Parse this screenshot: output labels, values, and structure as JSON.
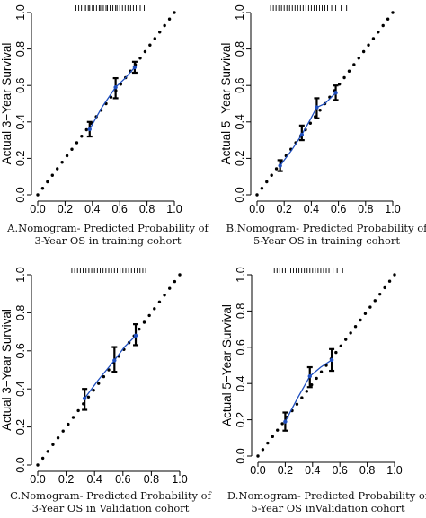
{
  "chart_data": [
    {
      "type": "scatter",
      "caption": [
        "A.Nomogram- Predicted Probability of",
        "3-Year OS in training cohort"
      ],
      "ylabel": "Actual 3−Year Survival",
      "xlim": [
        0,
        1
      ],
      "ylim": [
        0,
        1
      ],
      "xticks": [
        "0.0",
        "0.2",
        "0.4",
        "0.6",
        "0.8",
        "1.0"
      ],
      "yticks": [
        "0.0",
        "0.2",
        "0.4",
        "0.6",
        "0.8",
        "1.0"
      ],
      "ideal_line": {
        "x": [
          0,
          1
        ],
        "y": [
          0,
          1
        ]
      },
      "calibration": {
        "x": [
          0.38,
          0.57,
          0.71
        ],
        "y": [
          0.36,
          0.59,
          0.7
        ],
        "lower": [
          0.32,
          0.53,
          0.67
        ],
        "upper": [
          0.4,
          0.64,
          0.73
        ]
      },
      "fit_line": {
        "x": [
          0.38,
          0.47,
          0.57,
          0.64,
          0.71
        ],
        "y": [
          0.36,
          0.48,
          0.59,
          0.64,
          0.7
        ]
      },
      "rug": [
        0.28,
        0.3,
        0.32,
        0.34,
        0.35,
        0.37,
        0.38,
        0.4,
        0.41,
        0.43,
        0.45,
        0.46,
        0.48,
        0.5,
        0.51,
        0.53,
        0.55,
        0.57,
        0.58,
        0.6,
        0.62,
        0.64,
        0.66,
        0.68,
        0.7,
        0.72,
        0.75,
        0.78
      ]
    },
    {
      "type": "scatter",
      "caption": [
        "B.Nomogram- Predicted Probability of",
        "5-Year OS in training cohort"
      ],
      "ylabel": "Actual 5−Year Survival",
      "xlim": [
        0,
        1
      ],
      "ylim": [
        0,
        1
      ],
      "xticks": [
        "0.0",
        "0.2",
        "0.4",
        "0.6",
        "0.8",
        "1.0"
      ],
      "yticks": [
        "0.0",
        "0.2",
        "0.4",
        "0.6",
        "0.8",
        "1.0"
      ],
      "ideal_line": {
        "x": [
          0,
          1
        ],
        "y": [
          0,
          1
        ]
      },
      "calibration": {
        "x": [
          0.17,
          0.33,
          0.44,
          0.58
        ],
        "y": [
          0.16,
          0.33,
          0.48,
          0.56
        ],
        "lower": [
          0.13,
          0.3,
          0.42,
          0.52
        ],
        "upper": [
          0.19,
          0.38,
          0.53,
          0.6
        ]
      },
      "fit_line": {
        "x": [
          0.17,
          0.25,
          0.33,
          0.39,
          0.44,
          0.5,
          0.58
        ],
        "y": [
          0.16,
          0.24,
          0.33,
          0.41,
          0.48,
          0.5,
          0.56
        ]
      },
      "rug": [
        0.1,
        0.12,
        0.14,
        0.16,
        0.18,
        0.2,
        0.22,
        0.24,
        0.26,
        0.28,
        0.3,
        0.32,
        0.34,
        0.36,
        0.38,
        0.4,
        0.42,
        0.44,
        0.46,
        0.48,
        0.5,
        0.52,
        0.55,
        0.58,
        0.62,
        0.66
      ]
    },
    {
      "type": "scatter",
      "caption": [
        "C.Nomogram- Predicted Probability of",
        "3-Year OS in Validation cohort"
      ],
      "ylabel": "Actual 3−Year Survival",
      "xlim": [
        0,
        1
      ],
      "ylim": [
        0,
        1
      ],
      "xticks": [
        "0.0",
        "0.2",
        "0.4",
        "0.6",
        "0.8",
        "1.0"
      ],
      "yticks": [
        "0.0",
        "0.2",
        "0.4",
        "0.6",
        "0.8",
        "1.0"
      ],
      "ideal_line": {
        "x": [
          0,
          1
        ],
        "y": [
          0,
          1
        ]
      },
      "calibration": {
        "x": [
          0.33,
          0.54,
          0.69
        ],
        "y": [
          0.35,
          0.55,
          0.68
        ],
        "lower": [
          0.29,
          0.49,
          0.63
        ],
        "upper": [
          0.4,
          0.62,
          0.74
        ]
      },
      "fit_line": {
        "x": [
          0.33,
          0.43,
          0.54,
          0.61,
          0.69
        ],
        "y": [
          0.35,
          0.45,
          0.55,
          0.62,
          0.68
        ]
      },
      "rug": [
        0.24,
        0.26,
        0.28,
        0.3,
        0.32,
        0.34,
        0.36,
        0.38,
        0.4,
        0.42,
        0.44,
        0.46,
        0.48,
        0.5,
        0.52,
        0.54,
        0.56,
        0.58,
        0.6,
        0.62,
        0.64,
        0.66,
        0.68,
        0.7,
        0.72,
        0.74,
        0.76
      ]
    },
    {
      "type": "scatter",
      "caption": [
        "D.Nomogram- Predicted Probability of",
        "5-Year OS inValidation cohort"
      ],
      "ylabel": "Actual 5−Year Survival",
      "xlim": [
        0,
        1
      ],
      "ylim": [
        0,
        1
      ],
      "xticks": [
        "0.0",
        "0.2",
        "0.4",
        "0.6",
        "0.8",
        "1.0"
      ],
      "yticks": [
        "0.0",
        "0.2",
        "0.4",
        "0.6",
        "0.8",
        "1.0"
      ],
      "ideal_line": {
        "x": [
          0,
          1
        ],
        "y": [
          0,
          1
        ]
      },
      "calibration": {
        "x": [
          0.2,
          0.38,
          0.54
        ],
        "y": [
          0.19,
          0.44,
          0.53
        ],
        "lower": [
          0.14,
          0.38,
          0.47
        ],
        "upper": [
          0.24,
          0.49,
          0.59
        ]
      },
      "fit_line": {
        "x": [
          0.2,
          0.29,
          0.38,
          0.46,
          0.54
        ],
        "y": [
          0.19,
          0.32,
          0.44,
          0.49,
          0.53
        ]
      },
      "rug": [
        0.12,
        0.14,
        0.16,
        0.18,
        0.2,
        0.22,
        0.24,
        0.26,
        0.28,
        0.3,
        0.32,
        0.34,
        0.36,
        0.38,
        0.4,
        0.42,
        0.44,
        0.46,
        0.48,
        0.5,
        0.52,
        0.55,
        0.58,
        0.62
      ]
    }
  ]
}
